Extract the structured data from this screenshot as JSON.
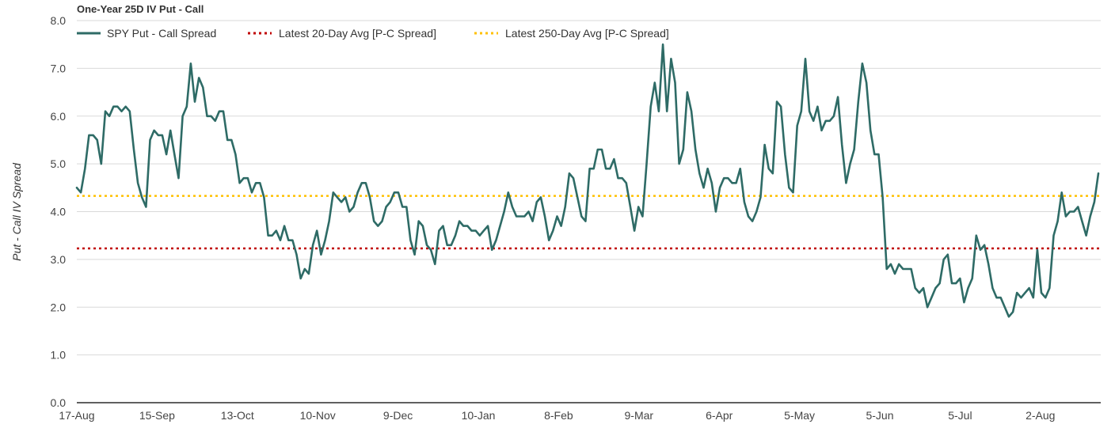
{
  "chart_data": {
    "type": "line",
    "title": "One-Year 25D IV Put - Call",
    "xlabel": "",
    "ylabel": "Put - Call IV Spread",
    "ylim": [
      0,
      8
    ],
    "yticks": [
      "0.0",
      "1.0",
      "2.0",
      "3.0",
      "4.0",
      "5.0",
      "6.0",
      "7.0",
      "8.0"
    ],
    "x_tick_labels": [
      "17-Aug",
      "15-Sep",
      "13-Oct",
      "10-Nov",
      "9-Dec",
      "10-Jan",
      "8-Feb",
      "9-Mar",
      "6-Apr",
      "5-May",
      "5-Jun",
      "5-Jul",
      "2-Aug"
    ],
    "grid": true,
    "legend_position": "top",
    "colors": {
      "series": "#2e6b66",
      "avg20": "#c00000",
      "avg250": "#ffc000",
      "grid": "#d9d9d9",
      "axis": "#000000"
    },
    "series": [
      {
        "name": "SPY Put - Call Spread",
        "style": "solid",
        "values": [
          4.5,
          4.4,
          4.9,
          5.6,
          5.6,
          5.5,
          5.0,
          6.1,
          6.0,
          6.2,
          6.2,
          6.1,
          6.2,
          6.1,
          5.3,
          4.6,
          4.3,
          4.1,
          5.5,
          5.7,
          5.6,
          5.6,
          5.2,
          5.7,
          5.2,
          4.7,
          6.0,
          6.2,
          7.1,
          6.3,
          6.8,
          6.6,
          6.0,
          6.0,
          5.9,
          6.1,
          6.1,
          5.5,
          5.5,
          5.2,
          4.6,
          4.7,
          4.7,
          4.4,
          4.6,
          4.6,
          4.3,
          3.5,
          3.5,
          3.6,
          3.4,
          3.7,
          3.4,
          3.4,
          3.1,
          2.6,
          2.8,
          2.7,
          3.3,
          3.6,
          3.1,
          3.4,
          3.8,
          4.4,
          4.3,
          4.2,
          4.3,
          4.0,
          4.1,
          4.4,
          4.6,
          4.6,
          4.3,
          3.8,
          3.7,
          3.8,
          4.1,
          4.2,
          4.4,
          4.4,
          4.1,
          4.1,
          3.4,
          3.1,
          3.8,
          3.7,
          3.3,
          3.2,
          2.9,
          3.6,
          3.7,
          3.3,
          3.3,
          3.5,
          3.8,
          3.7,
          3.7,
          3.6,
          3.6,
          3.5,
          3.6,
          3.7,
          3.2,
          3.4,
          3.7,
          4.0,
          4.4,
          4.1,
          3.9,
          3.9,
          3.9,
          4.0,
          3.8,
          4.2,
          4.3,
          3.9,
          3.4,
          3.6,
          3.9,
          3.7,
          4.1,
          4.8,
          4.7,
          4.3,
          3.9,
          3.8,
          4.9,
          4.9,
          5.3,
          5.3,
          4.9,
          4.9,
          5.1,
          4.7,
          4.7,
          4.6,
          4.1,
          3.6,
          4.1,
          3.9,
          5.0,
          6.2,
          6.7,
          6.1,
          7.5,
          6.1,
          7.2,
          6.7,
          5.0,
          5.3,
          6.5,
          6.1,
          5.3,
          4.8,
          4.5,
          4.9,
          4.6,
          4.0,
          4.5,
          4.7,
          4.7,
          4.6,
          4.6,
          4.9,
          4.2,
          3.9,
          3.8,
          4.0,
          4.3,
          5.4,
          4.9,
          4.8,
          6.3,
          6.2,
          5.2,
          4.5,
          4.4,
          5.8,
          6.1,
          7.2,
          6.1,
          5.9,
          6.2,
          5.7,
          5.9,
          5.9,
          6.0,
          6.4,
          5.4,
          4.6,
          5.0,
          5.3,
          6.3,
          7.1,
          6.7,
          5.7,
          5.2,
          5.2,
          4.3,
          2.8,
          2.9,
          2.7,
          2.9,
          2.8,
          2.8,
          2.8,
          2.4,
          2.3,
          2.4,
          2.0,
          2.2,
          2.4,
          2.5,
          3.0,
          3.1,
          2.5,
          2.5,
          2.6,
          2.1,
          2.4,
          2.6,
          3.5,
          3.2,
          3.3,
          2.9,
          2.4,
          2.2,
          2.2,
          2.0,
          1.8,
          1.9,
          2.3,
          2.2,
          2.3,
          2.4,
          2.2,
          3.2,
          2.3,
          2.2,
          2.4,
          3.5,
          3.8,
          4.4,
          3.9,
          4.0,
          4.0,
          4.1,
          3.8,
          3.5,
          3.9,
          4.2,
          4.8
        ]
      },
      {
        "name": "Latest 20-Day Avg [P-C Spread]",
        "style": "dotted",
        "value": 3.23
      },
      {
        "name": "Latest 250-Day Avg [P-C Spread]",
        "style": "dotted",
        "value": 4.33
      }
    ]
  }
}
